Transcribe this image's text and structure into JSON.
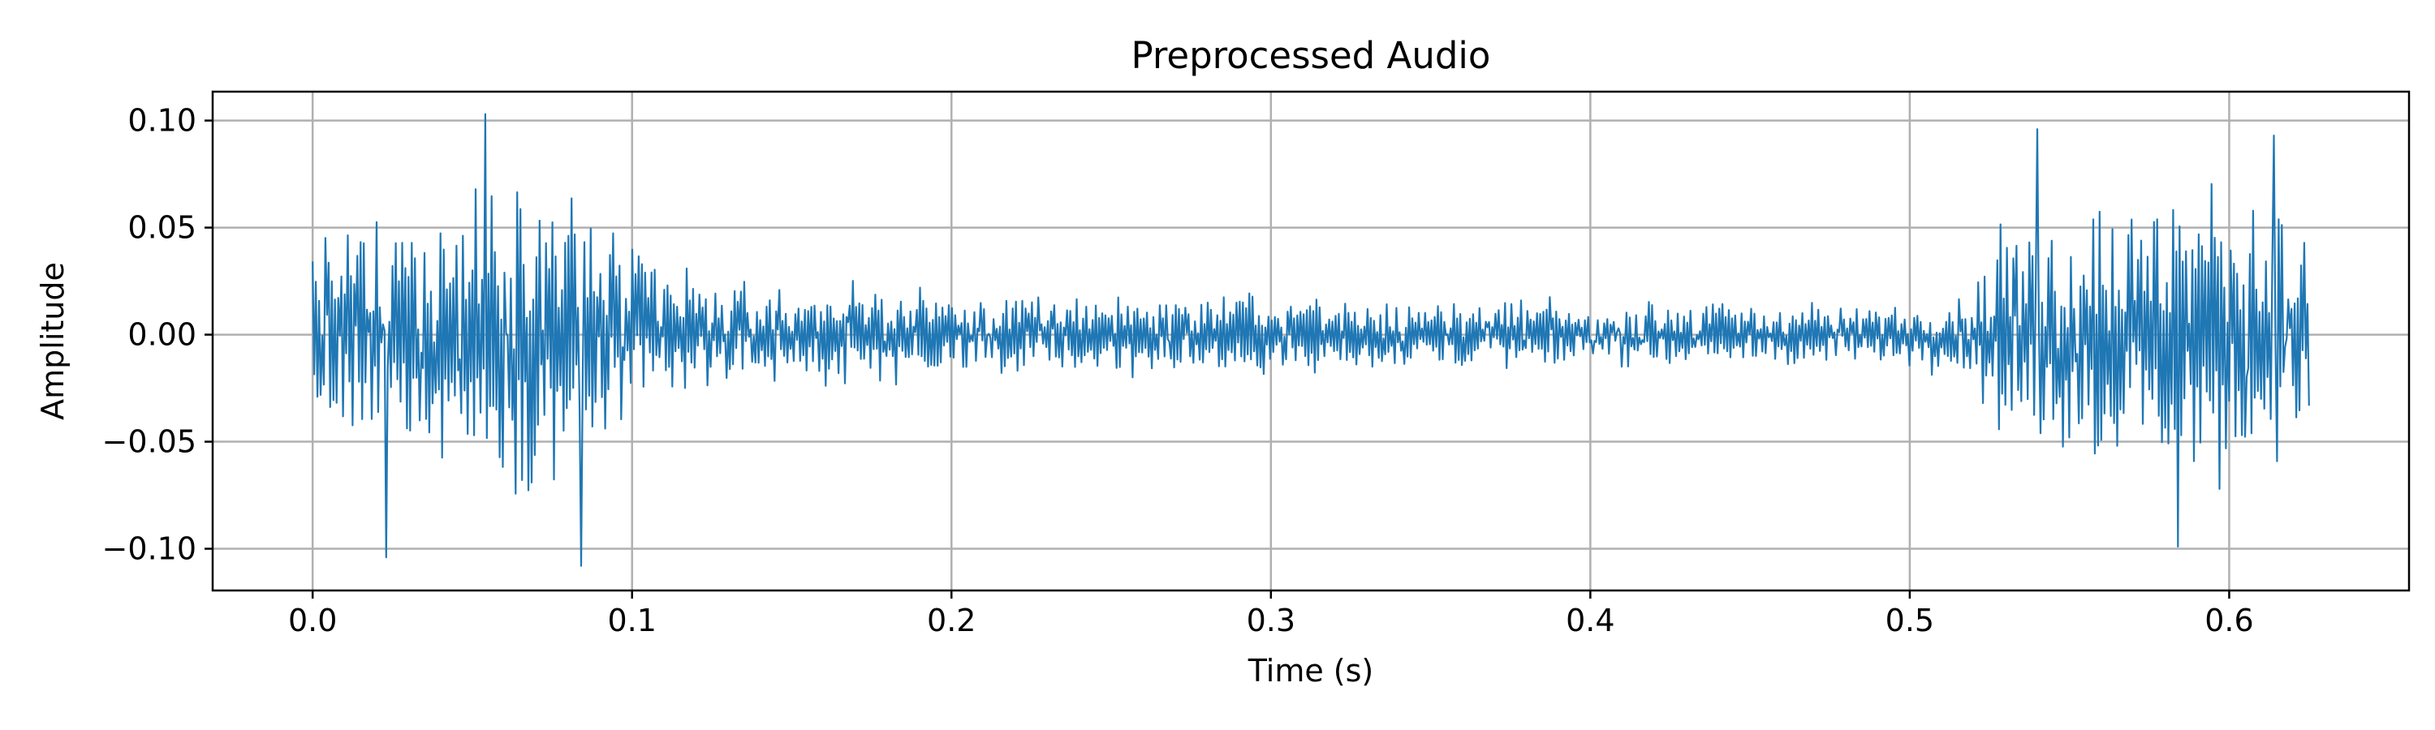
{
  "chart_data": {
    "type": "line",
    "title": "Preprocessed Audio",
    "xlabel": "Time (s)",
    "ylabel": "Amplitude",
    "xlim": [
      -0.0313,
      0.6563
    ],
    "ylim": [
      -0.1195,
      0.1135
    ],
    "grid": true,
    "x_ticks": [
      0.0,
      0.1,
      0.2,
      0.3,
      0.4,
      0.5,
      0.6
    ],
    "x_tick_labels": [
      "0.0",
      "0.1",
      "0.2",
      "0.3",
      "0.4",
      "0.5",
      "0.6"
    ],
    "y_ticks": [
      -0.1,
      -0.05,
      0.0,
      0.05,
      0.1
    ],
    "y_tick_labels": [
      "−0.10",
      "−0.05",
      "0.00",
      "0.05",
      "0.10"
    ],
    "series": [
      {
        "color": "#1f77b4",
        "sample_count": 1250,
        "x_range": [
          0.0,
          0.625
        ],
        "envelope": [
          {
            "t": 0.0,
            "amp": 0.06
          },
          {
            "t": 0.02,
            "amp": 0.07
          },
          {
            "t": 0.05,
            "amp": 0.085
          },
          {
            "t": 0.085,
            "amp": 0.085
          },
          {
            "t": 0.1,
            "amp": 0.055
          },
          {
            "t": 0.13,
            "amp": 0.03
          },
          {
            "t": 0.16,
            "amp": 0.03
          },
          {
            "t": 0.2,
            "amp": 0.025
          },
          {
            "t": 0.3,
            "amp": 0.022
          },
          {
            "t": 0.4,
            "amp": 0.018
          },
          {
            "t": 0.5,
            "amp": 0.018
          },
          {
            "t": 0.52,
            "amp": 0.025
          },
          {
            "t": 0.53,
            "amp": 0.075
          },
          {
            "t": 0.56,
            "amp": 0.085
          },
          {
            "t": 0.6,
            "amp": 0.085
          },
          {
            "t": 0.625,
            "amp": 0.065
          }
        ],
        "peaks": [
          {
            "x": 0.054,
            "y": 0.103
          },
          {
            "x": 0.084,
            "y": -0.108
          },
          {
            "x": 0.023,
            "y": -0.104
          },
          {
            "x": 0.54,
            "y": 0.096
          },
          {
            "x": 0.584,
            "y": -0.099
          },
          {
            "x": 0.614,
            "y": 0.093
          }
        ]
      }
    ]
  }
}
